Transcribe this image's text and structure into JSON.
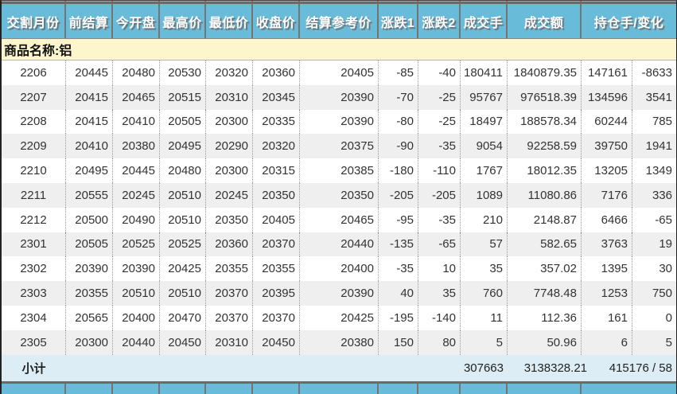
{
  "table": {
    "header_labels": [
      "交割月份",
      "前结算",
      "今开盘",
      "最高价",
      "最低价",
      "收盘价",
      "结算参考价",
      "涨跌1",
      "涨跌2",
      "成交手",
      "成交额",
      "持仓手/变化"
    ],
    "commodity_label": "商品名称:铝",
    "rows": [
      [
        "2206",
        "20445",
        "20480",
        "20530",
        "20320",
        "20360",
        "20405",
        "-85",
        "-40",
        "180411",
        "1840879.35",
        "147161",
        "-8633"
      ],
      [
        "2207",
        "20415",
        "20465",
        "20515",
        "20310",
        "20345",
        "20390",
        "-70",
        "-25",
        "95767",
        "976518.39",
        "134596",
        "3541"
      ],
      [
        "2208",
        "20415",
        "20410",
        "20505",
        "20300",
        "20335",
        "20390",
        "-80",
        "-25",
        "18497",
        "188578.34",
        "60244",
        "785"
      ],
      [
        "2209",
        "20410",
        "20380",
        "20495",
        "20290",
        "20320",
        "20375",
        "-90",
        "-35",
        "9054",
        "92258.59",
        "39750",
        "1941"
      ],
      [
        "2210",
        "20495",
        "20445",
        "20480",
        "20300",
        "20315",
        "20385",
        "-180",
        "-110",
        "1767",
        "18012.35",
        "13205",
        "1349"
      ],
      [
        "2211",
        "20555",
        "20245",
        "20510",
        "20245",
        "20350",
        "20350",
        "-205",
        "-205",
        "1089",
        "11080.86",
        "7176",
        "336"
      ],
      [
        "2212",
        "20500",
        "20490",
        "20510",
        "20350",
        "20405",
        "20465",
        "-95",
        "-35",
        "210",
        "2148.87",
        "6466",
        "-65"
      ],
      [
        "2301",
        "20505",
        "20525",
        "20525",
        "20360",
        "20370",
        "20440",
        "-135",
        "-65",
        "57",
        "582.65",
        "3763",
        "19"
      ],
      [
        "2302",
        "20390",
        "20390",
        "20425",
        "20355",
        "20355",
        "20400",
        "-35",
        "10",
        "35",
        "357.02",
        "1395",
        "30"
      ],
      [
        "2303",
        "20355",
        "20510",
        "20510",
        "20370",
        "20395",
        "20390",
        "40",
        "35",
        "760",
        "7748.48",
        "1253",
        "750"
      ],
      [
        "2304",
        "20565",
        "20400",
        "20470",
        "20370",
        "20370",
        "20425",
        "-195",
        "-140",
        "11",
        "112.36",
        "161",
        "0"
      ],
      [
        "2305",
        "20300",
        "20440",
        "20450",
        "20310",
        "20450",
        "20380",
        "150",
        "80",
        "5",
        "50.96",
        "6",
        "5"
      ]
    ],
    "subtotal": {
      "label": "小计",
      "volume": "307663",
      "turnover": "3138328.21",
      "oi_change": "415176 / 58"
    }
  },
  "colors": {
    "header_bg": "#69bcd9",
    "header_text": "#ffffff",
    "header_text_shadow": "#6d6d6d",
    "commodity_bg": "#fdf5cc",
    "row_stripe": "#efefef",
    "subtotal_bg": "#dcedf6",
    "border_dark": "#6a6a6a",
    "cell_divider": "#999999",
    "data_text": "#333333"
  }
}
